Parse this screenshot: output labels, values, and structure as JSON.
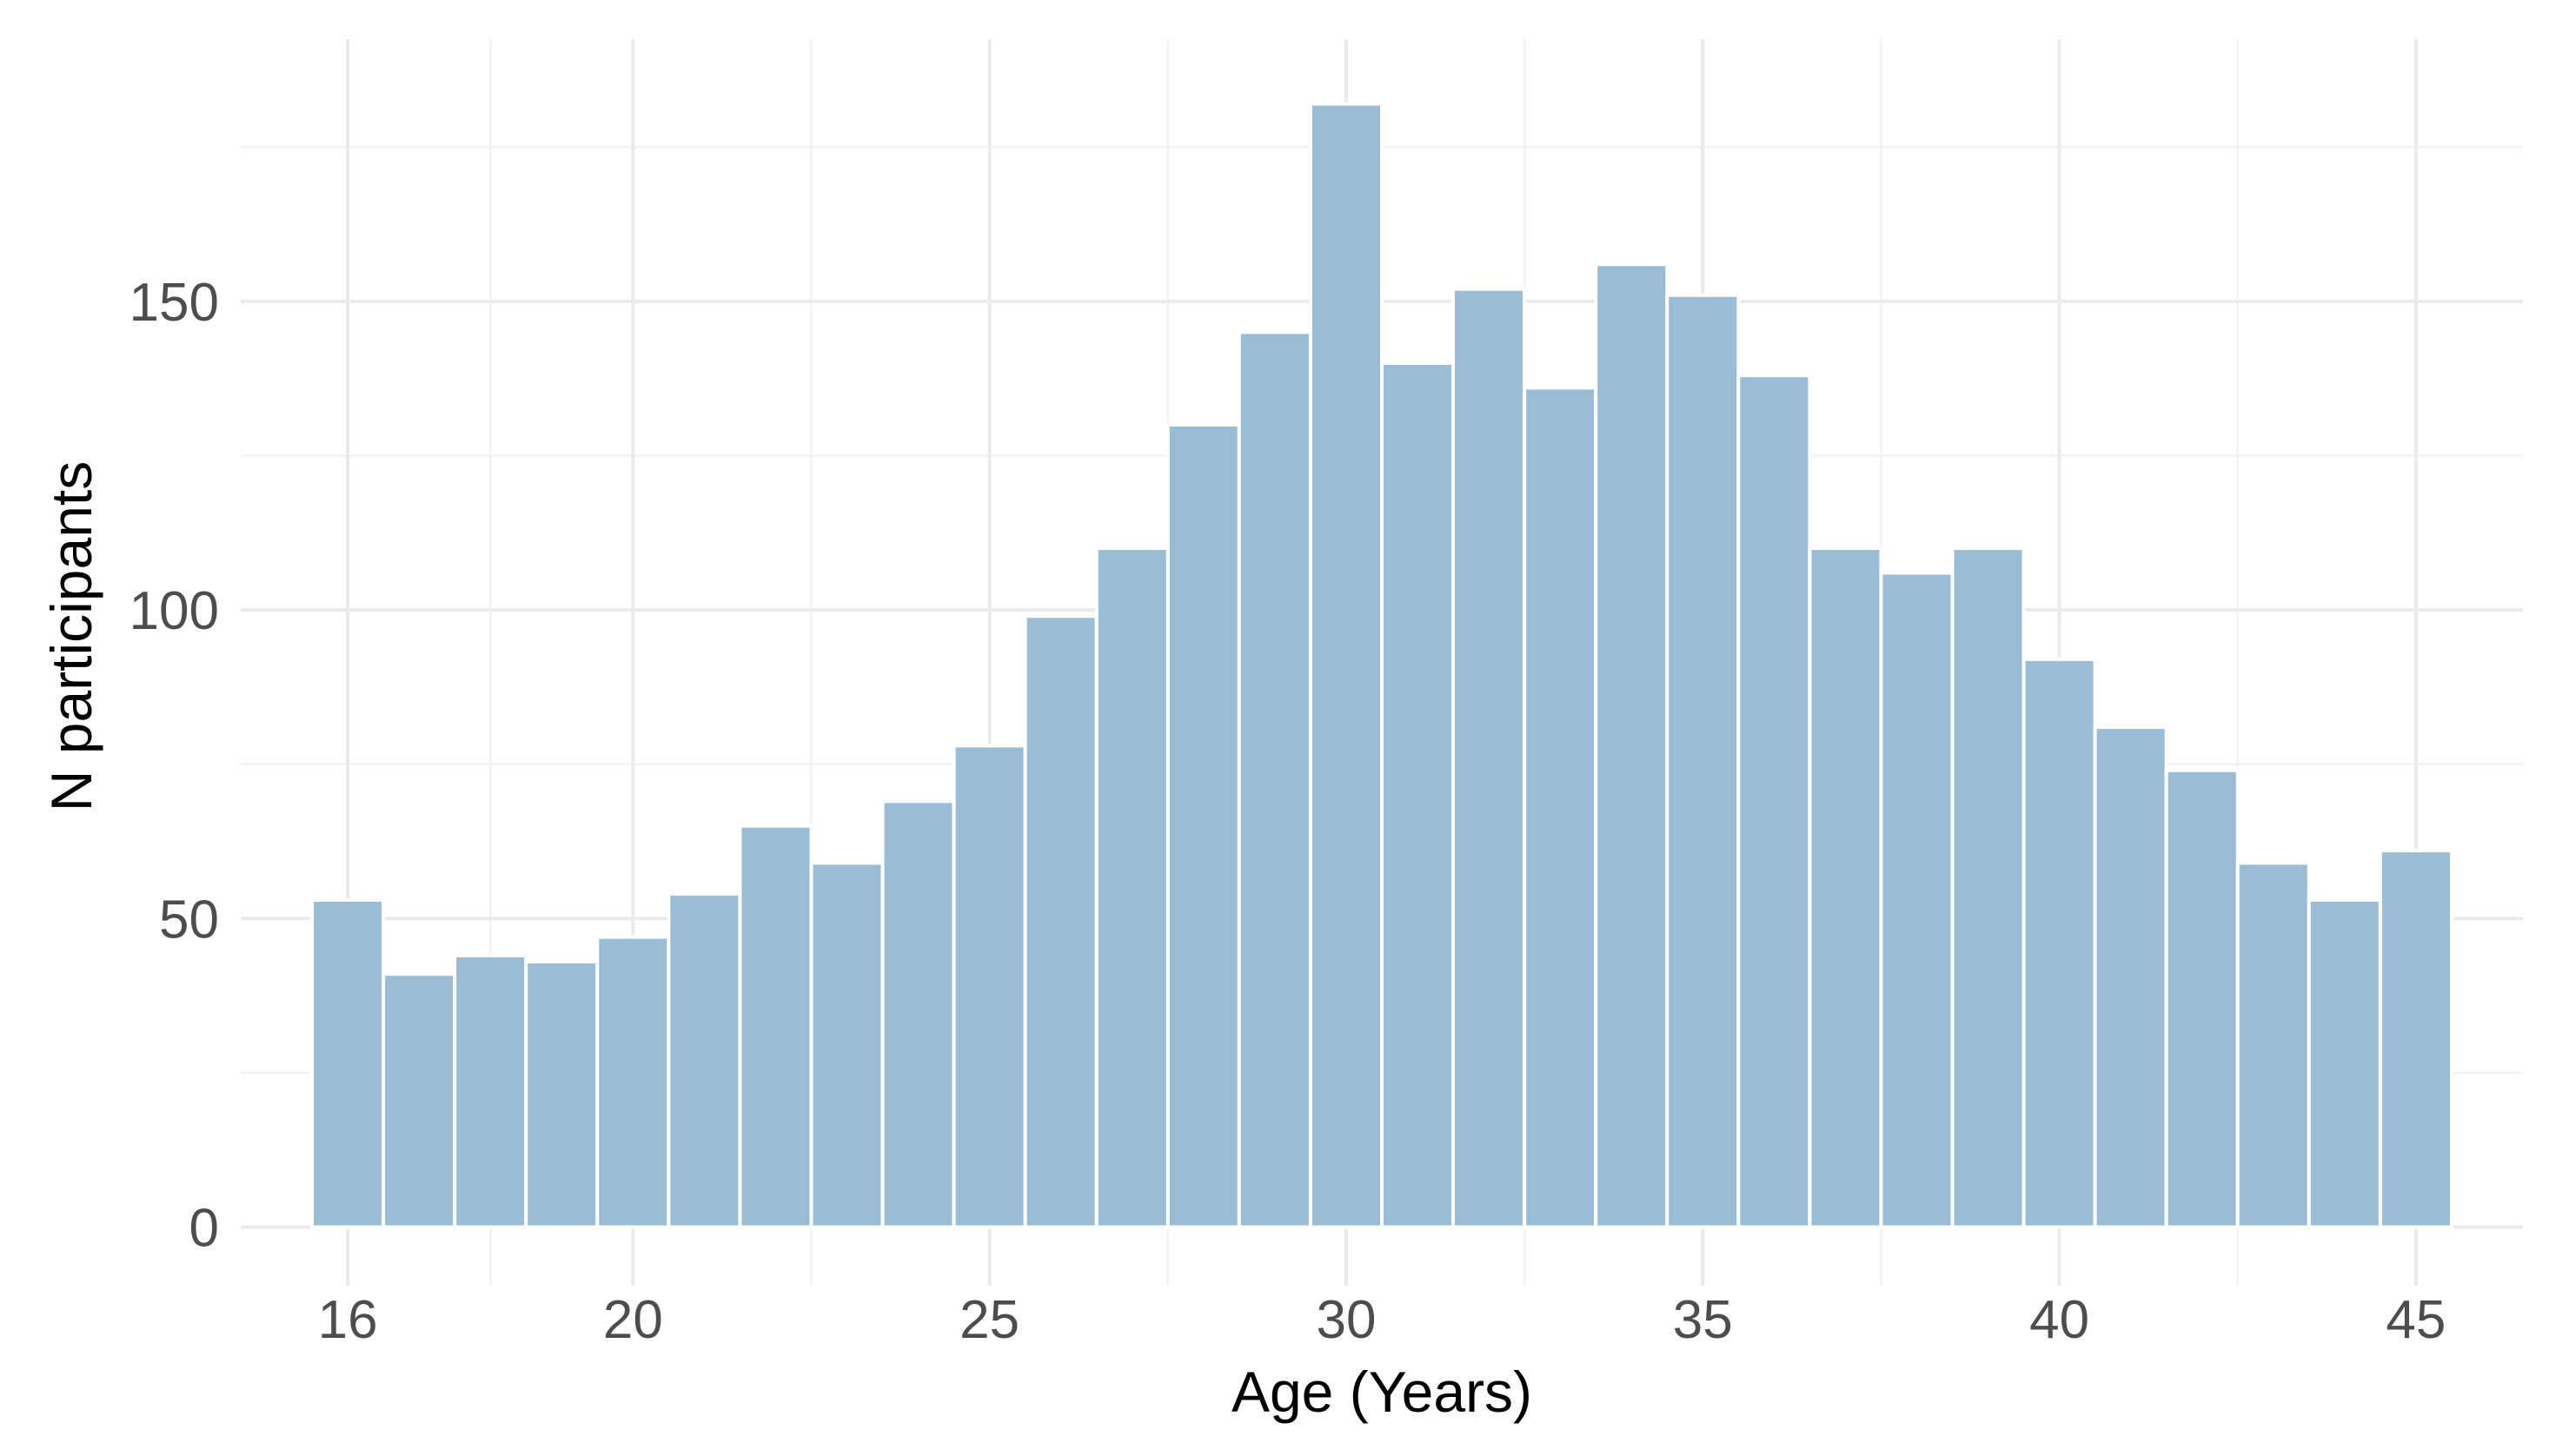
{
  "chart_data": {
    "type": "bar",
    "xlabel": "Age (Years)",
    "ylabel": "N participants",
    "bar_color": "#9bbcd5",
    "grid": true,
    "theme": "minimal",
    "x": [
      16,
      17,
      18,
      19,
      20,
      21,
      22,
      23,
      24,
      25,
      26,
      27,
      28,
      29,
      30,
      31,
      32,
      33,
      34,
      35,
      36,
      37,
      38,
      39,
      40,
      41,
      42,
      43,
      44,
      45
    ],
    "values": [
      53,
      41,
      44,
      43,
      47,
      54,
      65,
      59,
      69,
      78,
      99,
      110,
      130,
      145,
      182,
      140,
      152,
      136,
      156,
      151,
      138,
      110,
      106,
      110,
      92,
      81,
      74,
      59,
      53,
      61
    ],
    "xlim": [
      14.5,
      46.5
    ],
    "ylim": [
      -9.5,
      192.5
    ],
    "x_ticks": [
      16,
      20,
      25,
      30,
      35,
      40,
      45
    ],
    "x_tick_labels": [
      "16",
      "20",
      "25",
      "30",
      "35",
      "40",
      "45"
    ],
    "y_ticks": [
      0,
      50,
      100,
      150
    ],
    "y_tick_labels": [
      "0",
      "50",
      "100",
      "150"
    ],
    "x_minor_ticks": [
      18,
      22.5,
      27.5,
      32.5,
      37.5,
      42.5
    ],
    "y_minor_ticks": [
      25,
      75,
      125,
      175
    ]
  }
}
